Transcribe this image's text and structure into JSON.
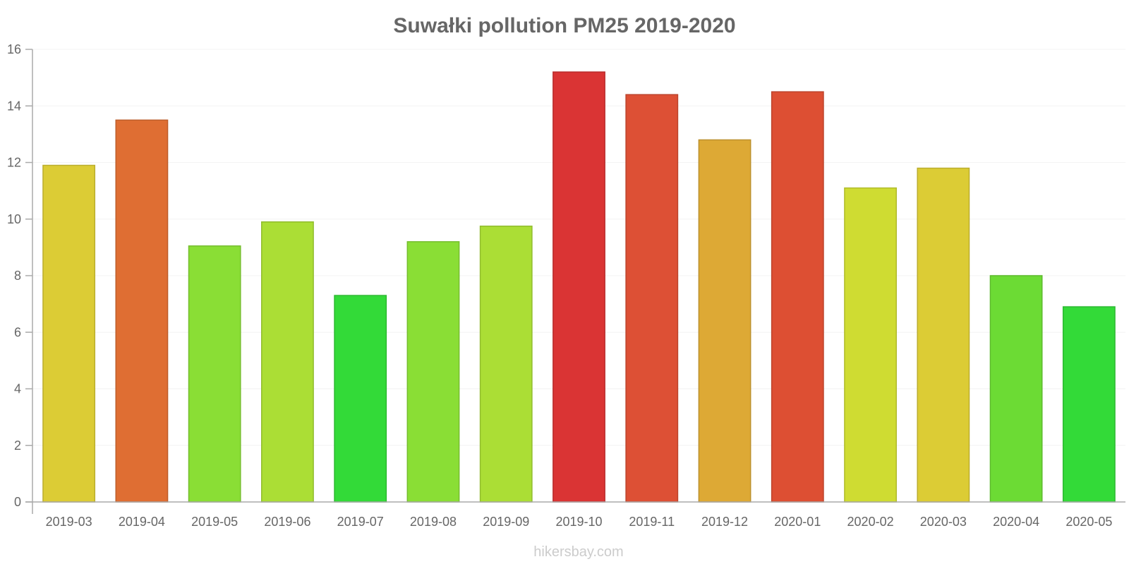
{
  "chart_data": {
    "type": "bar",
    "title": "Suwałki pollution PM25 2019-2020",
    "xlabel": "",
    "ylabel": "",
    "ylim": [
      0,
      16
    ],
    "yticks": [
      0,
      2,
      4,
      6,
      8,
      10,
      12,
      14,
      16
    ],
    "grid": true,
    "categories": [
      "2019-03",
      "2019-04",
      "2019-05",
      "2019-06",
      "2019-07",
      "2019-08",
      "2019-09",
      "2019-10",
      "2019-11",
      "2019-12",
      "2020-01",
      "2020-02",
      "2020-03",
      "2020-04",
      "2020-05"
    ],
    "values": [
      11.9,
      13.5,
      9.05,
      9.9,
      7.3,
      9.2,
      9.75,
      15.2,
      14.4,
      12.8,
      14.5,
      11.1,
      11.8,
      8.0,
      6.9
    ],
    "colors": [
      "#dccc35",
      "#df6e33",
      "#8ade35",
      "#abde35",
      "#33da38",
      "#8ade35",
      "#abde35",
      "#da3434",
      "#dd5035",
      "#dda935",
      "#dd4f33",
      "#cfdc32",
      "#dccc35",
      "#6cdb34",
      "#33da38"
    ]
  },
  "watermark": "hikersbay.com"
}
